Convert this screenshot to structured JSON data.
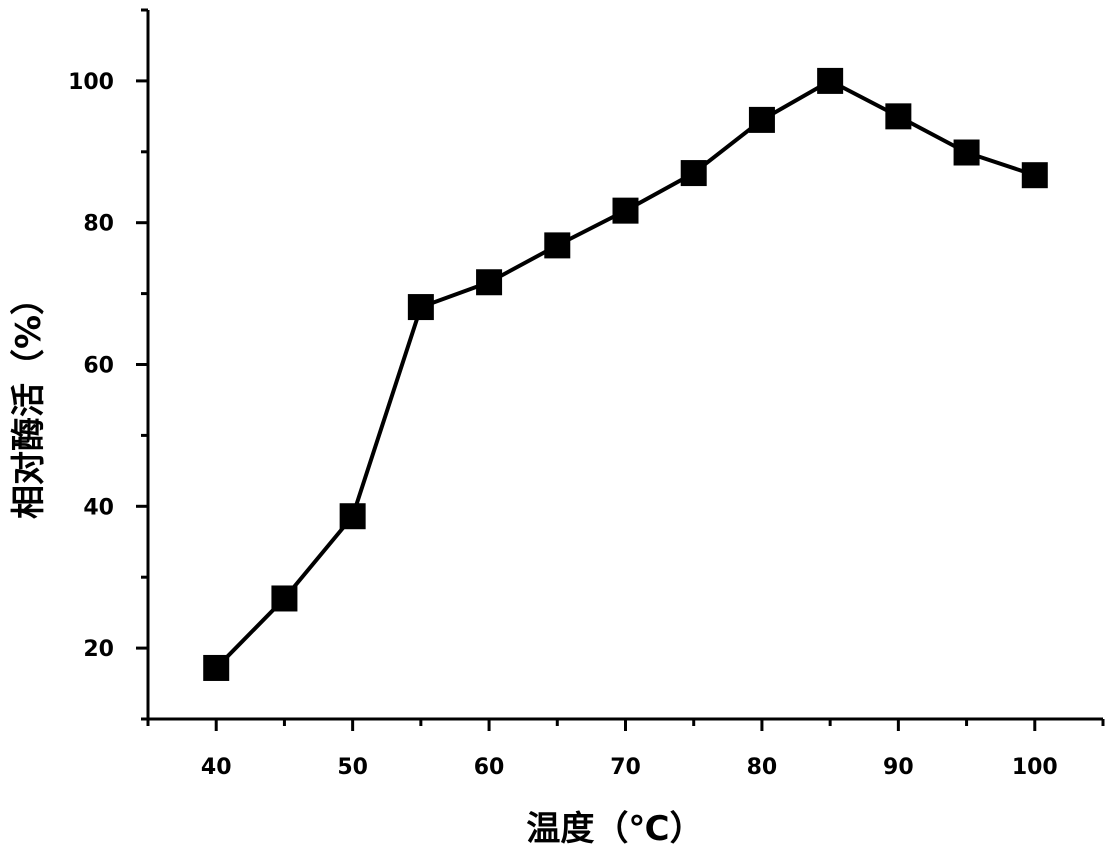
{
  "chart_data": {
    "type": "line",
    "title": "",
    "xlabel": "温度（℃）",
    "ylabel": "相对酶活（%）",
    "xlim": [
      35,
      105
    ],
    "ylim": [
      10,
      110
    ],
    "x_ticks": [
      "40",
      "50",
      "60",
      "70",
      "80",
      "90",
      "100"
    ],
    "x_tick_values": [
      40,
      50,
      60,
      70,
      80,
      90,
      100
    ],
    "x_minor_tick_values": [
      35,
      45,
      55,
      65,
      75,
      85,
      95,
      105
    ],
    "y_ticks": [
      "20",
      "40",
      "60",
      "80",
      "100"
    ],
    "y_tick_values": [
      20,
      40,
      60,
      80,
      100
    ],
    "y_minor_tick_values": [
      10,
      30,
      50,
      70,
      90,
      110
    ],
    "grid": false,
    "series": [
      {
        "marker": "square",
        "color": "#000000",
        "x": [
          40,
          45,
          50,
          55,
          60,
          65,
          70,
          75,
          80,
          85,
          90,
          95,
          100
        ],
        "y": [
          17.2,
          27.0,
          38.6,
          68.1,
          71.6,
          76.8,
          81.7,
          87.0,
          94.5,
          100.0,
          95.0,
          89.9,
          86.7
        ]
      }
    ]
  }
}
